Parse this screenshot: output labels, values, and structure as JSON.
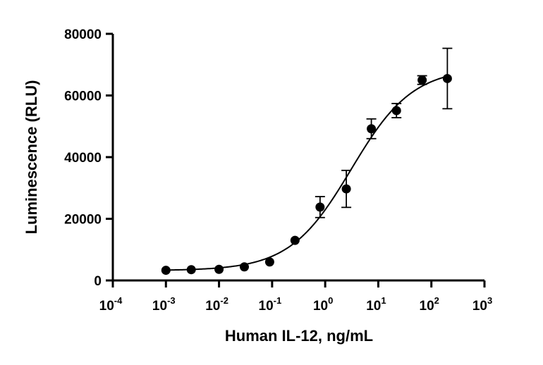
{
  "chart_data": {
    "type": "scatter",
    "xlabel": "Human IL-12, ng/mL",
    "ylabel": "Luminescence (RLU)",
    "x_scale": "log",
    "xlim": [
      0.0001,
      1000
    ],
    "ylim": [
      0,
      80000
    ],
    "x_ticks": [
      {
        "base": "10",
        "exp": "-4",
        "value": 0.0001
      },
      {
        "base": "10",
        "exp": "-3",
        "value": 0.001
      },
      {
        "base": "10",
        "exp": "-2",
        "value": 0.01
      },
      {
        "base": "10",
        "exp": "-1",
        "value": 0.1
      },
      {
        "base": "10",
        "exp": "0",
        "value": 1
      },
      {
        "base": "10",
        "exp": "1",
        "value": 10
      },
      {
        "base": "10",
        "exp": "2",
        "value": 100
      },
      {
        "base": "10",
        "exp": "3",
        "value": 1000
      }
    ],
    "y_ticks": [
      {
        "label": "0",
        "value": 0
      },
      {
        "label": "20000",
        "value": 20000
      },
      {
        "label": "40000",
        "value": 40000
      },
      {
        "label": "60000",
        "value": 60000
      },
      {
        "label": "80000",
        "value": 80000
      }
    ],
    "grid": false,
    "legend": "none",
    "marker_color": "#000000",
    "points": [
      {
        "x": 0.001,
        "y": 3300,
        "err": 0
      },
      {
        "x": 0.003,
        "y": 3500,
        "err": 0
      },
      {
        "x": 0.01,
        "y": 3600,
        "err": 0
      },
      {
        "x": 0.03,
        "y": 4400,
        "err": 0
      },
      {
        "x": 0.09,
        "y": 6000,
        "err": 0
      },
      {
        "x": 0.27,
        "y": 13000,
        "err": 0
      },
      {
        "x": 0.8,
        "y": 23800,
        "err": 3400
      },
      {
        "x": 2.5,
        "y": 29700,
        "err": 6000
      },
      {
        "x": 7.4,
        "y": 49200,
        "err": 3200
      },
      {
        "x": 22,
        "y": 55100,
        "err": 2300
      },
      {
        "x": 67,
        "y": 65000,
        "err": 1400
      },
      {
        "x": 200,
        "y": 65500,
        "err": 9800
      }
    ],
    "fit": {
      "model": "4PL",
      "bottom": 3200,
      "top": 69000,
      "ec50": 3.1,
      "hill": 0.75,
      "x_range": [
        0.001,
        200
      ]
    }
  }
}
